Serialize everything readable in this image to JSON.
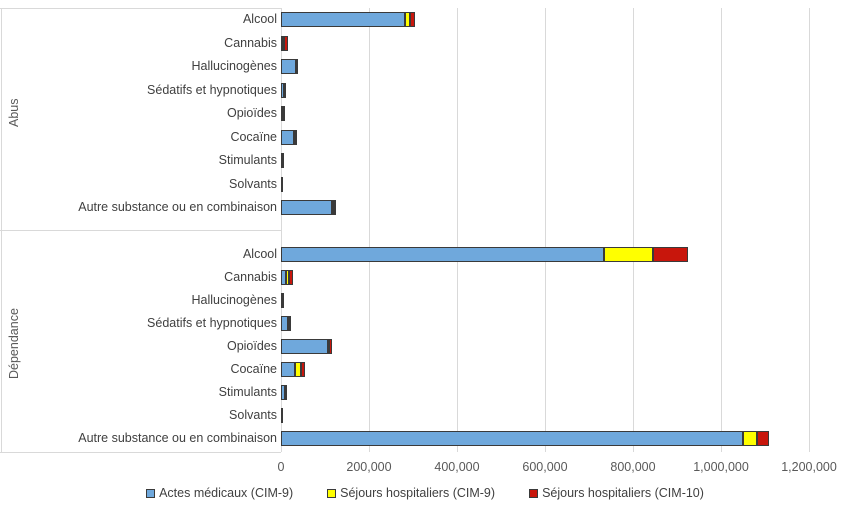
{
  "chart_data": {
    "type": "bar",
    "orientation": "horizontal",
    "stacked": true,
    "title": "",
    "xlabel": "",
    "ylabel": "",
    "xlim": [
      0,
      1200000
    ],
    "xticks": [
      0,
      200000,
      400000,
      600000,
      800000,
      1000000,
      1200000
    ],
    "xtick_labels": [
      "0",
      "200,000",
      "400,000",
      "600,000",
      "800,000",
      "1,000,000",
      "1,200,000"
    ],
    "grid": true,
    "legend_position": "bottom",
    "series_meta": [
      {
        "name": "Actes médicaux (CIM-9)",
        "color": "#6FA8DC"
      },
      {
        "name": "Séjours hospitaliers (CIM-9)",
        "color": "#FFFF00"
      },
      {
        "name": "Séjours hospitaliers (CIM-10)",
        "color": "#C8160C"
      }
    ],
    "groups": [
      {
        "label": "Abus",
        "rows": [
          {
            "category": "Alcool",
            "values": [
              282000,
              11000,
              12000
            ]
          },
          {
            "category": "Cannabis",
            "values": [
              5000,
              2000,
              8000
            ]
          },
          {
            "category": "Hallucinogènes",
            "values": [
              34000,
              0,
              1000
            ]
          },
          {
            "category": "Sédatifs et hypnotiques",
            "values": [
              7000,
              0,
              1000
            ]
          },
          {
            "category": "Opioïdes",
            "values": [
              4000,
              0,
              1500
            ]
          },
          {
            "category": "Cocaïne",
            "values": [
              30000,
              2000,
              2000
            ]
          },
          {
            "category": "Stimulants",
            "values": [
              1500,
              0,
              4500
            ]
          },
          {
            "category": "Solvants",
            "values": [
              1000,
              0,
              0
            ]
          },
          {
            "category": "Autre substance ou en combinaison",
            "values": [
              115000,
              6000,
              5000
            ]
          }
        ]
      },
      {
        "label": "Dépendance",
        "rows": [
          {
            "category": "Alcool",
            "values": [
              735000,
              110000,
              80000
            ]
          },
          {
            "category": "Cannabis",
            "values": [
              11000,
              7000,
              10000
            ]
          },
          {
            "category": "Hallucinogènes",
            "values": [
              3000,
              0,
              1000
            ]
          },
          {
            "category": "Sédatifs et hypnotiques",
            "values": [
              16000,
              2000,
              5000
            ]
          },
          {
            "category": "Opioïdes",
            "values": [
              107000,
              2000,
              7000
            ]
          },
          {
            "category": "Cocaïne",
            "values": [
              32000,
              13000,
              10000
            ]
          },
          {
            "category": "Stimulants",
            "values": [
              9000,
              0,
              5000
            ]
          },
          {
            "category": "Solvants",
            "values": [
              1000,
              0,
              0
            ]
          },
          {
            "category": "Autre substance ou en combinaison",
            "values": [
              1050000,
              31000,
              27000
            ]
          }
        ]
      }
    ],
    "colors": {
      "gridline": "#D9D9D9",
      "separator": "#D9D9D9",
      "segment_border": "#3A3A3A",
      "axis_text": "#595959",
      "category_text": "#404040",
      "legend_text": "#404040",
      "background": "#FFFFFF"
    }
  }
}
